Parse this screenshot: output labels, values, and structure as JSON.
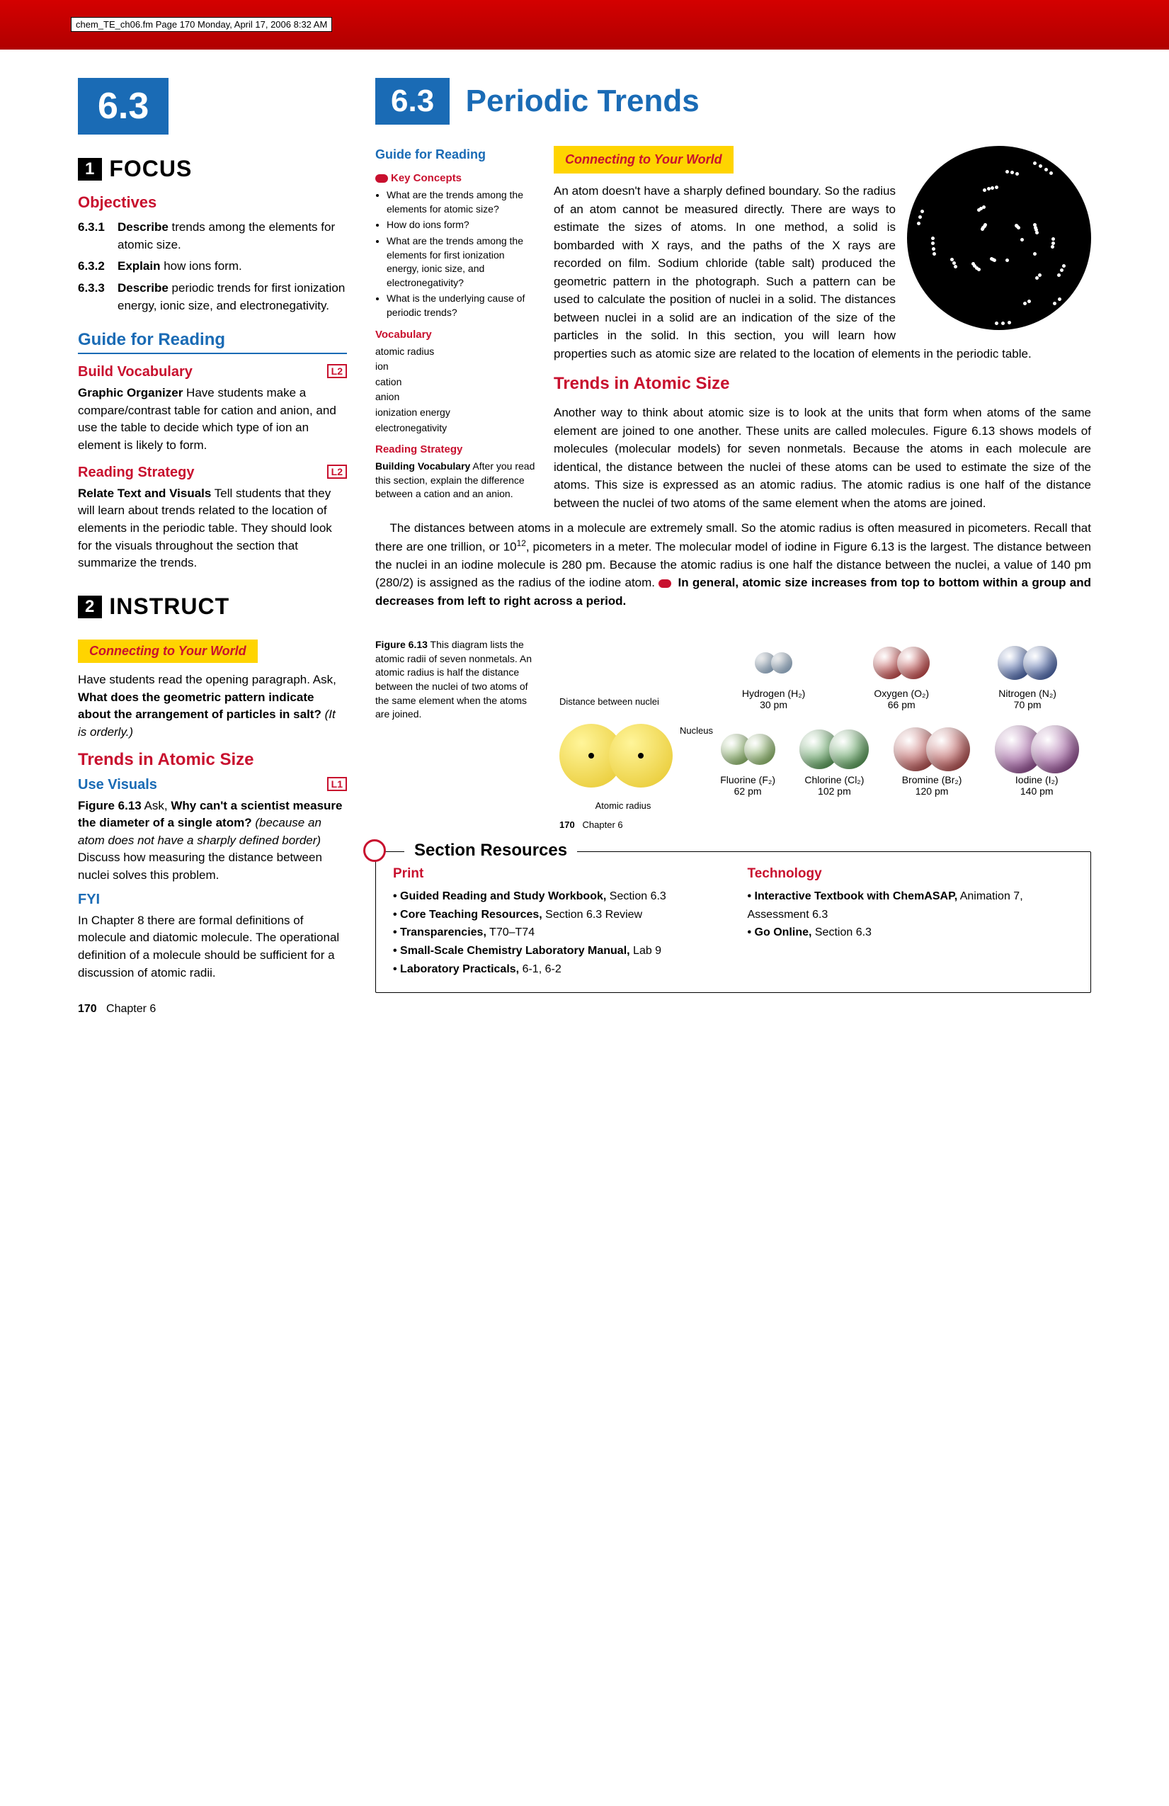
{
  "pagemark": "chem_TE_ch06.fm  Page 170  Monday, April 17, 2006  8:32 AM",
  "section_number": "6.3",
  "section_title": "Periodic Trends",
  "focus": {
    "heading": "FOCUS",
    "num": "1",
    "objectives_title": "Objectives",
    "objectives": [
      {
        "num": "6.3.1",
        "verb": "Describe",
        "rest": " trends among the elements for atomic size."
      },
      {
        "num": "6.3.2",
        "verb": "Explain",
        "rest": " how ions form."
      },
      {
        "num": "6.3.3",
        "verb": "Describe",
        "rest": " periodic trends for first ionization energy, ionic size, and electronegativity."
      }
    ],
    "guide_title": "Guide for Reading",
    "vocab_title": "Build Vocabulary",
    "vocab_badge": "L2",
    "vocab_text_label": "Graphic Organizer",
    "vocab_text": " Have students make a compare/contrast table for cation and anion, and use the table to decide which type of ion an element is likely to form.",
    "strategy_title": "Reading Strategy",
    "strategy_badge": "L2",
    "strategy_label": "Relate Text and Visuals",
    "strategy_text": " Tell students that they will learn about trends related to the location of elements in the periodic table. They should look for the visuals throughout the section that summarize the trends."
  },
  "instruct": {
    "heading": "INSTRUCT",
    "num": "2",
    "connect_bar": "Connecting to Your World",
    "connect_text1": "Have students read the opening paragraph. Ask, ",
    "connect_bold": "What does the geometric pattern indicate about the arrangement of particles in salt?",
    "connect_ital": " (It is orderly.)",
    "trends_title": "Trends in Atomic Size",
    "use_visuals_title": "Use Visuals",
    "use_visuals_badge": "L1",
    "use_visuals_lead": "Figure 6.13",
    "use_visuals_ask": " Ask, ",
    "use_visuals_bold": "Why can't a scientist measure the diameter of a single atom?",
    "use_visuals_ital": " (because an atom does not have a sharply defined border)",
    "use_visuals_rest": " Discuss how measuring the distance between nuclei solves this problem.",
    "fyi_title": "FYI",
    "fyi_text": "In Chapter 8 there are formal definitions of molecule and diatomic molecule. The operational definition of a molecule should be sufficient for a discussion of atomic radii."
  },
  "student_page": {
    "guide_title": "Guide for Reading",
    "key_concepts_title": "Key Concepts",
    "key_concepts": [
      "What are the trends among the elements for atomic size?",
      "How do ions form?",
      "What are the trends among the elements for first ionization energy, ionic size, and electronegativity?",
      "What is the underlying cause of periodic trends?"
    ],
    "vocab_title": "Vocabulary",
    "vocab": [
      "atomic radius",
      "ion",
      "cation",
      "anion",
      "ionization energy",
      "electronegativity"
    ],
    "strategy_title": "Reading Strategy",
    "strategy_label": "Building Vocabulary",
    "strategy_text": " After you read this section, explain the difference between a cation and an anion.",
    "connect_bar": "Connecting to Your World",
    "connect_body": "An atom doesn't have a sharply defined boundary. So the radius of an atom cannot be measured directly. There are ways to estimate the sizes of atoms. In one method, a solid is bombarded with X rays, and the paths of the X rays are recorded on film. Sodium chloride (table salt) produced the geometric pattern in the photograph. Such a pattern can be used to calculate the position of nuclei in a solid. The distances between nuclei in a solid are an indication of the size of the particles in the solid. In this section, you will learn how properties such as atomic size are related to the location of elements in the periodic table.",
    "trends_title": "Trends in Atomic Size",
    "trends_p1": "Another way to think about atomic size is to look at the units that form when atoms of the same element are joined to one another. These units are called molecules. Figure 6.13 shows models of molecules (molecular models) for seven nonmetals. Because the atoms in each molecule are identical, the distance between the nuclei of these atoms can be used to estimate the size of the atoms. This size is expressed as an atomic radius. The atomic radius is one half of the distance between the nuclei of two atoms of the same element when the atoms are joined.",
    "trends_p2a": "The distances between atoms in a molecule are extremely small. So the atomic radius is often measured in picometers. Recall that there are one trillion, or 10",
    "trends_p2_sup": "12",
    "trends_p2b": ", picometers in a meter. The molecular model of iodine in Figure 6.13 is the largest. The distance between the nuclei in an iodine molecule is 280 pm. Because the atomic radius is one half the distance between the nuclei, a value of 140 pm (280/2) is assigned as the radius of the iodine atom. ",
    "trends_key": "In general, atomic size increases from top to bottom within a group and decreases from left to right across a period.",
    "fig_label": "Figure 6.13",
    "fig_caption": " This diagram lists the atomic radii of seven nonmetals. An atomic radius is half the distance between the nuclei of two atoms of the same element when the atoms are joined.",
    "diagram_labels": {
      "dist": "Distance between nuclei",
      "nucleus": "Nucleus",
      "radius": "Atomic radius"
    },
    "molecules": [
      {
        "name": "Hydrogen (H₂)",
        "pm": "30 pm",
        "color": "#8fb8e0",
        "size": 30
      },
      {
        "name": "Oxygen (O₂)",
        "pm": "66 pm",
        "color": "#c01515",
        "size": 46
      },
      {
        "name": "Nitrogen (N₂)",
        "pm": "70 pm",
        "color": "#1a3f9e",
        "size": 48
      },
      {
        "name": "Fluorine (F₂)",
        "pm": "62 pm",
        "color": "#7ab648",
        "size": 44
      },
      {
        "name": "Chlorine (Cl₂)",
        "pm": "102 pm",
        "color": "#2d8a2d",
        "size": 56
      },
      {
        "name": "Bromine (Br₂)",
        "pm": "120 pm",
        "color": "#a62020",
        "size": 62
      },
      {
        "name": "Iodine (I₂)",
        "pm": "140 pm",
        "color": "#7a1f7a",
        "size": 68
      }
    ],
    "inner_page": "170",
    "inner_chapter": "Chapter 6"
  },
  "resources": {
    "title": "Section Resources",
    "print_title": "Print",
    "print": [
      {
        "b": "Guided Reading and Study Workbook,",
        "r": " Section 6.3"
      },
      {
        "b": "Core Teaching Resources,",
        "r": " Section 6.3 Review"
      },
      {
        "b": "Transparencies,",
        "r": " T70–T74"
      },
      {
        "b": "Small-Scale Chemistry Laboratory Manual,",
        "r": " Lab 9"
      },
      {
        "b": "Laboratory Practicals,",
        "r": " 6-1, 6-2"
      }
    ],
    "tech_title": "Technology",
    "tech": [
      {
        "b": "Interactive Textbook with ChemASAP,",
        "r": " Animation 7, Assessment 6.3"
      },
      {
        "b": "Go Online,",
        "r": " Section 6.3"
      }
    ]
  },
  "footer": {
    "page": "170",
    "chapter": "Chapter 6"
  },
  "colors": {
    "red": "#c8102e",
    "blue": "#1a6bb5",
    "yellow": "#ffd400"
  }
}
